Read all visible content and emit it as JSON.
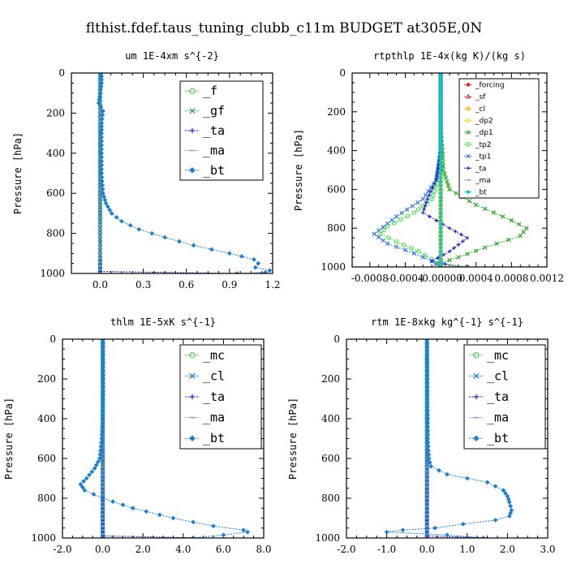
{
  "title": "flthist.fdef.taus_tuning_clubb_c11m  BUDGET at305E,0N",
  "chart_data": [
    {
      "type": "line",
      "title": "um  1E-4xm s^{-2}",
      "ylabel": "Pressure [hPa]",
      "xlim": [
        -0.2,
        1.2
      ],
      "ylim": [
        1000,
        0
      ],
      "xticks": [
        "0.0",
        "0.3",
        "0.6",
        "0.9",
        "1.2"
      ],
      "xtick_values": [
        0.0,
        0.3,
        0.6,
        0.9,
        1.2
      ],
      "yticks": [
        "0",
        "200",
        "400",
        "600",
        "800",
        "1000"
      ],
      "legend_style": "big",
      "series": [
        {
          "name": "_f",
          "color": "#33cc33",
          "marker": "circle",
          "points": [
            [
              0,
              0
            ],
            [
              0,
              100
            ],
            [
              0,
              200
            ],
            [
              0,
              300
            ],
            [
              0,
              400
            ],
            [
              0,
              500
            ],
            [
              0,
              600
            ],
            [
              0,
              700
            ],
            [
              0,
              800
            ],
            [
              0,
              900
            ],
            [
              0,
              1000
            ]
          ]
        },
        {
          "name": "_gf",
          "color": "#2a9a8a",
          "marker": "x",
          "points": [
            [
              0,
              0
            ],
            [
              0,
              150
            ],
            [
              0,
              300
            ],
            [
              0,
              500
            ],
            [
              0,
              700
            ],
            [
              0,
              850
            ],
            [
              0,
              1000
            ]
          ]
        },
        {
          "name": "_ta",
          "color": "#2222cc",
          "marker": "plus",
          "points": [
            [
              0,
              0
            ],
            [
              0,
              300
            ],
            [
              0,
              600
            ],
            [
              0,
              900
            ],
            [
              0,
              990
            ],
            [
              0.95,
              1000
            ]
          ]
        },
        {
          "name": "_ma",
          "color": "#7799dd",
          "marker": "dash",
          "points": [
            [
              0,
              0
            ],
            [
              0,
              500
            ],
            [
              0,
              1000
            ]
          ]
        },
        {
          "name": "_bt",
          "color": "#1a7fd6",
          "marker": "diamond",
          "points": [
            [
              0.01,
              0
            ],
            [
              0.01,
              50
            ],
            [
              0.0,
              100
            ],
            [
              -0.01,
              150
            ],
            [
              0.02,
              190
            ],
            [
              0.01,
              250
            ],
            [
              0.01,
              300
            ],
            [
              0.01,
              400
            ],
            [
              0.01,
              500
            ],
            [
              0.02,
              600
            ],
            [
              0.04,
              650
            ],
            [
              0.08,
              700
            ],
            [
              0.15,
              740
            ],
            [
              0.27,
              780
            ],
            [
              0.45,
              820
            ],
            [
              0.65,
              860
            ],
            [
              0.9,
              900
            ],
            [
              1.07,
              930
            ],
            [
              1.1,
              950
            ],
            [
              1.08,
              970
            ],
            [
              1.18,
              985
            ],
            [
              1.15,
              995
            ],
            [
              0.95,
              1000
            ]
          ]
        }
      ]
    },
    {
      "type": "line",
      "title": "rtpthlp  1E-4x(kg K)/(kg s)",
      "ylabel": "Pressure [hPa]",
      "xlim": [
        -0.001,
        0.0012
      ],
      "ylim": [
        1000,
        0
      ],
      "xticks": [
        "-0.0008",
        "-0.0004",
        "-0.00000",
        "0.0004",
        "0.0008",
        "0.0012"
      ],
      "xtick_values": [
        -0.0008,
        -0.0004,
        0.0,
        0.0004,
        0.0008,
        0.0012
      ],
      "yticks": [
        "0",
        "200",
        "400",
        "600",
        "800",
        "1000"
      ],
      "legend_style": "small",
      "series": [
        {
          "name": "_forcing",
          "color": "#dd2222",
          "marker": "diamond",
          "points": [
            [
              0,
              0
            ],
            [
              0,
              100
            ],
            [
              0,
              200
            ],
            [
              0,
              300
            ],
            [
              0,
              400
            ],
            [
              0,
              500
            ],
            [
              0,
              600
            ],
            [
              0,
              700
            ],
            [
              0,
              800
            ],
            [
              0,
              900
            ],
            [
              0,
              1000
            ]
          ]
        },
        {
          "name": "_sf",
          "color": "#dd2222",
          "marker": "triangle",
          "points": [
            [
              0,
              0
            ],
            [
              0,
              500
            ],
            [
              0,
              1000
            ]
          ]
        },
        {
          "name": "_cl",
          "color": "#ffaa00",
          "marker": "triangle",
          "points": [
            [
              0,
              0
            ],
            [
              0,
              500
            ],
            [
              0,
              980
            ],
            [
              0.0001,
              1000
            ]
          ]
        },
        {
          "name": "_dp2",
          "color": "#ffcc00",
          "marker": "circle",
          "points": [
            [
              0,
              0
            ],
            [
              0,
              500
            ],
            [
              0,
              1000
            ]
          ]
        },
        {
          "name": "_dp1",
          "color": "#22aa22",
          "marker": "x",
          "points": [
            [
              0,
              0
            ],
            [
              0,
              300
            ],
            [
              2e-05,
              400
            ],
            [
              3e-05,
              500
            ],
            [
              0.0001,
              600
            ],
            [
              0.0004,
              680
            ],
            [
              0.0008,
              760
            ],
            [
              0.00097,
              800
            ],
            [
              0.0009,
              840
            ],
            [
              0.0005,
              900
            ],
            [
              0.0002,
              950
            ],
            [
              0,
              980
            ],
            [
              0.0003,
              1000
            ]
          ]
        },
        {
          "name": "_tp2",
          "color": "#44dd44",
          "marker": "circle",
          "points": [
            [
              0,
              0
            ],
            [
              0,
              400
            ],
            [
              -3e-05,
              550
            ],
            [
              -0.0001,
              650
            ],
            [
              -0.0003,
              720
            ],
            [
              -0.0006,
              790
            ],
            [
              -0.00068,
              830
            ],
            [
              -0.0005,
              870
            ],
            [
              -0.00025,
              920
            ],
            [
              -0.0001,
              960
            ],
            [
              0,
              1000
            ]
          ]
        },
        {
          "name": "_tp1",
          "color": "#3377ee",
          "marker": "x",
          "points": [
            [
              0,
              0
            ],
            [
              0,
              400
            ],
            [
              -5e-05,
              550
            ],
            [
              -0.0002,
              650
            ],
            [
              -0.0005,
              740
            ],
            [
              -0.00075,
              830
            ],
            [
              -0.0006,
              880
            ],
            [
              -0.0003,
              930
            ],
            [
              -0.0001,
              970
            ],
            [
              0,
              1000
            ]
          ]
        },
        {
          "name": "_ta",
          "color": "#2222cc",
          "marker": "plus",
          "points": [
            [
              0,
              0
            ],
            [
              0,
              400
            ],
            [
              -5e-05,
              550
            ],
            [
              -0.00015,
              650
            ],
            [
              -0.0002,
              720
            ],
            [
              0.0001,
              800
            ],
            [
              0.0003,
              850
            ],
            [
              0.0001,
              920
            ],
            [
              -0.0001,
              970
            ],
            [
              0.0002,
              1000
            ]
          ]
        },
        {
          "name": "_ma",
          "color": "#7799dd",
          "marker": "dash",
          "points": [
            [
              0,
              0
            ],
            [
              0,
              500
            ],
            [
              0,
              1000
            ]
          ]
        },
        {
          "name": "_bt",
          "color": "#00cccc",
          "marker": "diamond",
          "points": [
            [
              0,
              0
            ],
            [
              0,
              500
            ],
            [
              0,
              1000
            ]
          ]
        }
      ]
    },
    {
      "type": "line",
      "title": "thlm  1E-5xK s^{-1}",
      "ylabel": "Pressure [hPa]",
      "xlim": [
        -2.0,
        8.0
      ],
      "ylim": [
        1000,
        0
      ],
      "xticks": [
        "-2.0",
        "0.0",
        "2.0",
        "4.0",
        "6.0",
        "8.0"
      ],
      "xtick_values": [
        -2.0,
        0.0,
        2.0,
        4.0,
        6.0,
        8.0
      ],
      "yticks": [
        "0",
        "200",
        "400",
        "600",
        "800",
        "1000"
      ],
      "legend_style": "big",
      "series": [
        {
          "name": "_mc",
          "color": "#33cc33",
          "marker": "circle",
          "points": [
            [
              0,
              0
            ],
            [
              0,
              100
            ],
            [
              0,
              200
            ],
            [
              0,
              300
            ],
            [
              0,
              400
            ],
            [
              0,
              500
            ],
            [
              0,
              600
            ],
            [
              0,
              700
            ],
            [
              0,
              800
            ],
            [
              0,
              900
            ],
            [
              0,
              1000
            ]
          ]
        },
        {
          "name": "_cl",
          "color": "#1a7fd6",
          "marker": "x",
          "points": [
            [
              0,
              0
            ],
            [
              0,
              300
            ],
            [
              0,
              500
            ],
            [
              0,
              600
            ],
            [
              0,
              1000
            ]
          ]
        },
        {
          "name": "_ta",
          "color": "#2222cc",
          "marker": "plus",
          "points": [
            [
              0,
              0
            ],
            [
              0,
              500
            ],
            [
              0,
              990
            ],
            [
              5.0,
              1000
            ]
          ]
        },
        {
          "name": "_ma",
          "color": "#7799dd",
          "marker": "dash",
          "points": [
            [
              0,
              0
            ],
            [
              0,
              500
            ],
            [
              0,
              1000
            ]
          ]
        },
        {
          "name": "_bt",
          "color": "#1a7fd6",
          "marker": "diamond",
          "points": [
            [
              0.02,
              0
            ],
            [
              0.02,
              100
            ],
            [
              0.03,
              200
            ],
            [
              0.02,
              300
            ],
            [
              0.0,
              400
            ],
            [
              -0.05,
              500
            ],
            [
              -0.15,
              600
            ],
            [
              -0.4,
              650
            ],
            [
              -0.8,
              700
            ],
            [
              -1.1,
              730
            ],
            [
              -0.9,
              760
            ],
            [
              0.0,
              800
            ],
            [
              1.5,
              850
            ],
            [
              3.5,
              900
            ],
            [
              5.5,
              940
            ],
            [
              7.0,
              960
            ],
            [
              7.2,
              970
            ],
            [
              6.0,
              985
            ],
            [
              4.5,
              1000
            ]
          ]
        }
      ]
    },
    {
      "type": "line",
      "title": "rtm  1E-8xkg kg^{-1} s^{-1}",
      "ylabel": "Pressure [hPa]",
      "xlim": [
        -2.0,
        3.0
      ],
      "ylim": [
        1000,
        0
      ],
      "xticks": [
        "-2.0",
        "-1.0",
        "0.0",
        "1.0",
        "2.0",
        "3.0"
      ],
      "xtick_values": [
        -2.0,
        -1.0,
        0.0,
        1.0,
        2.0,
        3.0
      ],
      "yticks": [
        "0",
        "200",
        "400",
        "600",
        "800",
        "1000"
      ],
      "legend_style": "big",
      "series": [
        {
          "name": "_mc",
          "color": "#33cc33",
          "marker": "circle",
          "points": [
            [
              0,
              0
            ],
            [
              0,
              100
            ],
            [
              0,
              200
            ],
            [
              0,
              300
            ],
            [
              0,
              400
            ],
            [
              0,
              500
            ],
            [
              0,
              600
            ],
            [
              0,
              700
            ],
            [
              0,
              800
            ],
            [
              0,
              900
            ],
            [
              0,
              1000
            ]
          ]
        },
        {
          "name": "_cl",
          "color": "#1a7fd6",
          "marker": "x",
          "points": [
            [
              0,
              0
            ],
            [
              0,
              500
            ],
            [
              0,
              1000
            ]
          ]
        },
        {
          "name": "_ta",
          "color": "#2222cc",
          "marker": "plus",
          "points": [
            [
              0,
              0
            ],
            [
              0,
              500
            ],
            [
              0,
              990
            ],
            [
              1.5,
              1000
            ]
          ]
        },
        {
          "name": "_ma",
          "color": "#7799dd",
          "marker": "dash",
          "points": [
            [
              0,
              0
            ],
            [
              0,
              500
            ],
            [
              0,
              1000
            ]
          ]
        },
        {
          "name": "_bt",
          "color": "#1a7fd6",
          "marker": "diamond",
          "points": [
            [
              0.0,
              0
            ],
            [
              0.0,
              100
            ],
            [
              0.01,
              200
            ],
            [
              0.01,
              300
            ],
            [
              0.02,
              400
            ],
            [
              0.02,
              500
            ],
            [
              0.05,
              600
            ],
            [
              0.1,
              640
            ],
            [
              0.5,
              680
            ],
            [
              1.0,
              700
            ],
            [
              1.5,
              720
            ],
            [
              1.9,
              760
            ],
            [
              2.0,
              790
            ],
            [
              2.05,
              820
            ],
            [
              2.1,
              860
            ],
            [
              2.05,
              890
            ],
            [
              1.7,
              910
            ],
            [
              0.9,
              930
            ],
            [
              0.2,
              950
            ],
            [
              -0.6,
              960
            ],
            [
              -1.0,
              970
            ],
            [
              0.5,
              985
            ],
            [
              1.4,
              1000
            ]
          ]
        }
      ]
    }
  ]
}
